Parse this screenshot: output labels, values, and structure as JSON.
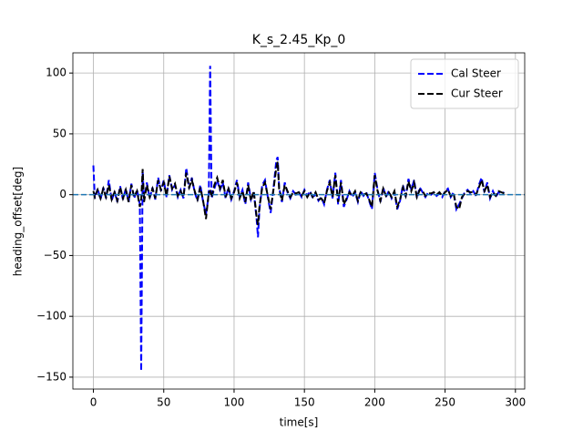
{
  "chart_data": {
    "type": "line",
    "title": "K_s_2.45_Kp_0",
    "xlabel": "time[s]",
    "ylabel": "heading_offset[deg]",
    "x": [
      0,
      1,
      3,
      5,
      7,
      9,
      11,
      13,
      15,
      17,
      19,
      21,
      23,
      25,
      27,
      29,
      31,
      33,
      34,
      35,
      36,
      38,
      40,
      42,
      44,
      46,
      48,
      50,
      52,
      54,
      56,
      58,
      60,
      62,
      64,
      66,
      68,
      70,
      72,
      74,
      76,
      78,
      80,
      82,
      83,
      84,
      86,
      88,
      90,
      92,
      94,
      96,
      98,
      100,
      102,
      104,
      106,
      108,
      110,
      112,
      114,
      116,
      117,
      118,
      120,
      122,
      124,
      126,
      128,
      130,
      131,
      132,
      134,
      136,
      138,
      140,
      142,
      144,
      146,
      148,
      150,
      152,
      154,
      156,
      158,
      160,
      162,
      164,
      166,
      168,
      170,
      172,
      174,
      176,
      178,
      180,
      182,
      184,
      186,
      188,
      190,
      192,
      194,
      196,
      198,
      200,
      202,
      204,
      206,
      208,
      210,
      212,
      214,
      216,
      218,
      220,
      222,
      224,
      226,
      228,
      230,
      232,
      234,
      236,
      238,
      240,
      242,
      244,
      246,
      248,
      250,
      252,
      254,
      256,
      258,
      260,
      262,
      264,
      266,
      268,
      270,
      272,
      274,
      276,
      278,
      280,
      282,
      284,
      286,
      288,
      290,
      292
    ],
    "series": [
      {
        "name": "Cal Steer",
        "color": "#0000ff",
        "values": [
          24,
          -3,
          5,
          -4,
          6,
          -3,
          12,
          -5,
          3,
          -6,
          7,
          -4,
          5,
          -6,
          9,
          -3,
          4,
          -8,
          -145,
          20,
          -5,
          10,
          -3,
          6,
          -4,
          14,
          3,
          12,
          -2,
          16,
          4,
          8,
          -2,
          4,
          -3,
          22,
          5,
          14,
          2,
          -5,
          8,
          -6,
          -16,
          0,
          106,
          -3,
          5,
          12,
          4,
          10,
          -3,
          6,
          -4,
          3,
          12,
          -2,
          4,
          -8,
          10,
          -4,
          2,
          -20,
          -35,
          -12,
          8,
          12,
          -2,
          -15,
          5,
          28,
          31,
          6,
          -6,
          10,
          2,
          -3,
          3,
          0,
          2,
          -2,
          4,
          -1,
          3,
          -3,
          1,
          -5,
          -2,
          -8,
          4,
          12,
          -3,
          18,
          -8,
          12,
          -10,
          -4,
          3,
          -2,
          2,
          -6,
          3,
          -1,
          2,
          -5,
          -12,
          18,
          4,
          -6,
          6,
          -2,
          3,
          -3,
          2,
          -12,
          -5,
          8,
          -2,
          13,
          4,
          12,
          -3,
          6,
          2,
          -2,
          2,
          0,
          2,
          -1,
          1,
          -2,
          3,
          5,
          -2,
          2,
          -12,
          -8,
          -3,
          2,
          4,
          1,
          3,
          -1,
          8,
          14,
          2,
          10,
          -3,
          3,
          -2,
          2,
          1,
          2
        ]
      },
      {
        "name": "Cur Steer",
        "color": "#000000",
        "values": [
          3,
          -2,
          4,
          -3,
          5,
          -2,
          8,
          -4,
          2,
          -5,
          6,
          -3,
          4,
          -6,
          8,
          -2,
          3,
          -10,
          -5,
          21,
          -6,
          8,
          -2,
          5,
          -3,
          12,
          4,
          10,
          -1,
          15,
          5,
          9,
          -1,
          3,
          -2,
          18,
          6,
          12,
          3,
          -4,
          6,
          -5,
          -20,
          2,
          3,
          -2,
          8,
          14,
          5,
          12,
          -2,
          5,
          -3,
          2,
          10,
          -3,
          3,
          -6,
          8,
          -5,
          3,
          -18,
          -25,
          -10,
          6,
          10,
          -1,
          -12,
          4,
          22,
          27,
          5,
          -5,
          8,
          3,
          -2,
          2,
          1,
          2,
          -1,
          3,
          -2,
          2,
          -2,
          2,
          -4,
          -3,
          -7,
          3,
          10,
          -2,
          16,
          -6,
          10,
          -8,
          -3,
          2,
          -1,
          3,
          -5,
          2,
          0,
          1,
          -4,
          -10,
          16,
          3,
          -5,
          5,
          -1,
          2,
          -2,
          3,
          -10,
          -4,
          6,
          -1,
          11,
          3,
          10,
          -2,
          4,
          3,
          -1,
          1,
          1,
          2,
          0,
          2,
          -1,
          2,
          4,
          -1,
          1,
          -10,
          -12,
          -2,
          1,
          3,
          2,
          2,
          0,
          6,
          12,
          3,
          8,
          -2,
          2,
          -1,
          3,
          2,
          1
        ]
      }
    ],
    "hline": 0,
    "hline_color": "#1f77b4",
    "xlim": [
      -14.6,
      306.6
    ],
    "ylim": [
      -159.8,
      116.6
    ],
    "xticks": [
      0,
      50,
      100,
      150,
      200,
      250,
      300
    ],
    "yticks": [
      {
        "value": -150,
        "label": "−150"
      },
      {
        "value": -100,
        "label": "−100"
      },
      {
        "value": -50,
        "label": "−50"
      },
      0,
      50,
      100
    ],
    "grid": true,
    "dashed": true,
    "legend": "upper right"
  }
}
